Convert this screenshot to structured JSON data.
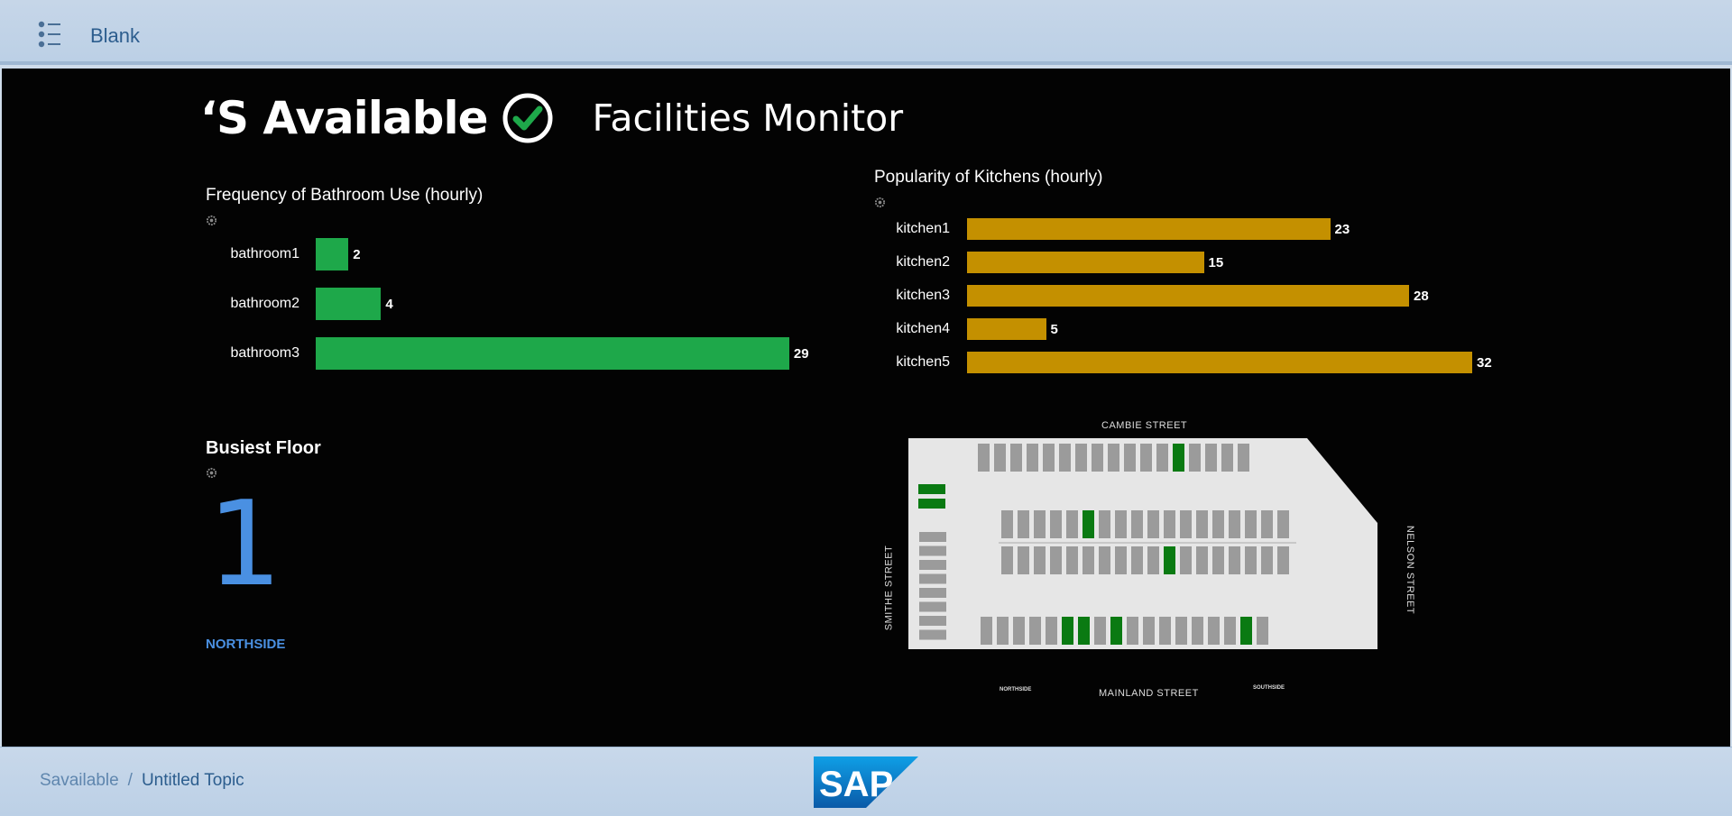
{
  "header": {
    "title": "Blank",
    "menu_icon": "list-menu-icon"
  },
  "brand": {
    "name": "‘S Available",
    "subtitle": "Facilities Monitor",
    "check_icon": "check-circle-icon"
  },
  "bathrooms": {
    "title": "Frequency of Bathroom Use (hourly)",
    "color": "#1ea84a",
    "chart_data": {
      "type": "bar",
      "orientation": "horizontal",
      "categories": [
        "bathroom1",
        "bathroom2",
        "bathroom3"
      ],
      "values": [
        2,
        4,
        29
      ]
    }
  },
  "kitchens": {
    "title": "Popularity of Kitchens (hourly)",
    "color": "#c49000",
    "chart_data": {
      "type": "bar",
      "orientation": "horizontal",
      "categories": [
        "kitchen1",
        "kitchen2",
        "kitchen3",
        "kitchen4",
        "kitchen5"
      ],
      "values": [
        23,
        15,
        28,
        5,
        32
      ]
    }
  },
  "busiest": {
    "title": "Busiest Floor",
    "value": "1",
    "side": "NORTHSIDE",
    "color": "#4a90e2"
  },
  "map": {
    "streets": {
      "top": "CAMBIE STREET",
      "left": "SMITHE STREET",
      "right": "NELSON STREET",
      "bottom": "MAINLAND STREET",
      "bottom_left": "NORTHSIDE",
      "bottom_right": "SOUTHSIDE"
    },
    "occupied_color": "#0a7a12",
    "free_color": "#9b9b9b"
  },
  "footer": {
    "crumb_root": "Savailable",
    "separator": "/",
    "crumb_current": "Untitled Topic",
    "logo_text": "SAP"
  }
}
